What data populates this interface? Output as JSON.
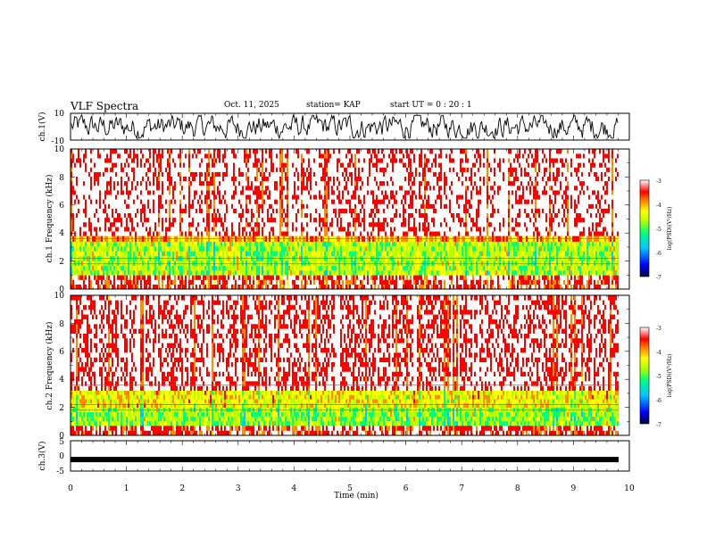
{
  "header": {
    "title": "VLF Spectra",
    "date": "Oct. 11, 2025",
    "station": "station= KAP",
    "start_ut": "start  UT =  0 : 20 : 1"
  },
  "chart_data": [
    {
      "type": "line",
      "panel": "ch1-waveform",
      "ylabel": "ch.1(V)",
      "ylim": [
        -10,
        10
      ],
      "yticks": [
        "10",
        "-10"
      ],
      "xlim": [
        0,
        10
      ],
      "description_values": "noisy waveform oscillating roughly between -8 and 8 V over 0–9.8 min"
    },
    {
      "type": "heatmap",
      "panel": "ch1-spectrogram",
      "ylabel": "ch.1 Frequency (kHz)",
      "ylim": [
        0,
        10
      ],
      "yticks": [
        "0",
        "2",
        "4",
        "6",
        "8",
        "10"
      ],
      "xlim": [
        0,
        10
      ],
      "bands": [
        {
          "from": 0.0,
          "to": 1.0,
          "level": -3.6
        },
        {
          "from": 1.0,
          "to": 3.4,
          "level": -5.0
        },
        {
          "from": 3.4,
          "to": 3.8,
          "level": -4.2
        },
        {
          "from": 3.8,
          "to": 10.0,
          "level": -3.3
        }
      ],
      "colorbar": {
        "label": "log(PSD)(V²/Hz)",
        "ticks": [
          "-3",
          "-4",
          "-5",
          "-6",
          "-7"
        ],
        "range": [
          -7,
          -3
        ]
      }
    },
    {
      "type": "heatmap",
      "panel": "ch2-spectrogram",
      "ylabel": "ch.2 Frequency (kHz)",
      "ylim": [
        0,
        10
      ],
      "yticks": [
        "0",
        "2",
        "4",
        "6",
        "8",
        "10"
      ],
      "xlim": [
        0,
        10
      ],
      "bands": [
        {
          "from": 0.0,
          "to": 0.7,
          "level": -3.6
        },
        {
          "from": 0.7,
          "to": 2.0,
          "level": -5.1
        },
        {
          "from": 2.0,
          "to": 3.2,
          "level": -4.6
        },
        {
          "from": 3.2,
          "to": 10.0,
          "level": -3.4
        }
      ],
      "colorbar": {
        "label": "log(PSD)(V²/Hz)",
        "ticks": [
          "-3",
          "-4",
          "-5",
          "-6",
          "-7"
        ],
        "range": [
          -7,
          -3
        ]
      }
    },
    {
      "type": "line",
      "panel": "ch3-waveform",
      "ylabel": "ch.3(V)",
      "ylim": [
        -5,
        5
      ],
      "yticks": [
        "5",
        "0",
        "-5"
      ],
      "xlim": [
        0,
        10
      ],
      "level": -1.2,
      "xlabel": "Time (min)",
      "xticks": [
        "0",
        "1",
        "2",
        "3",
        "4",
        "5",
        "6",
        "7",
        "8",
        "9",
        "10"
      ]
    }
  ],
  "colors": {
    "colormap": [
      "#00003a",
      "#0000ff",
      "#00c8ff",
      "#00ff7a",
      "#b8ff00",
      "#ffff00",
      "#ff8c00",
      "#ff0000",
      "#ffffff"
    ]
  }
}
